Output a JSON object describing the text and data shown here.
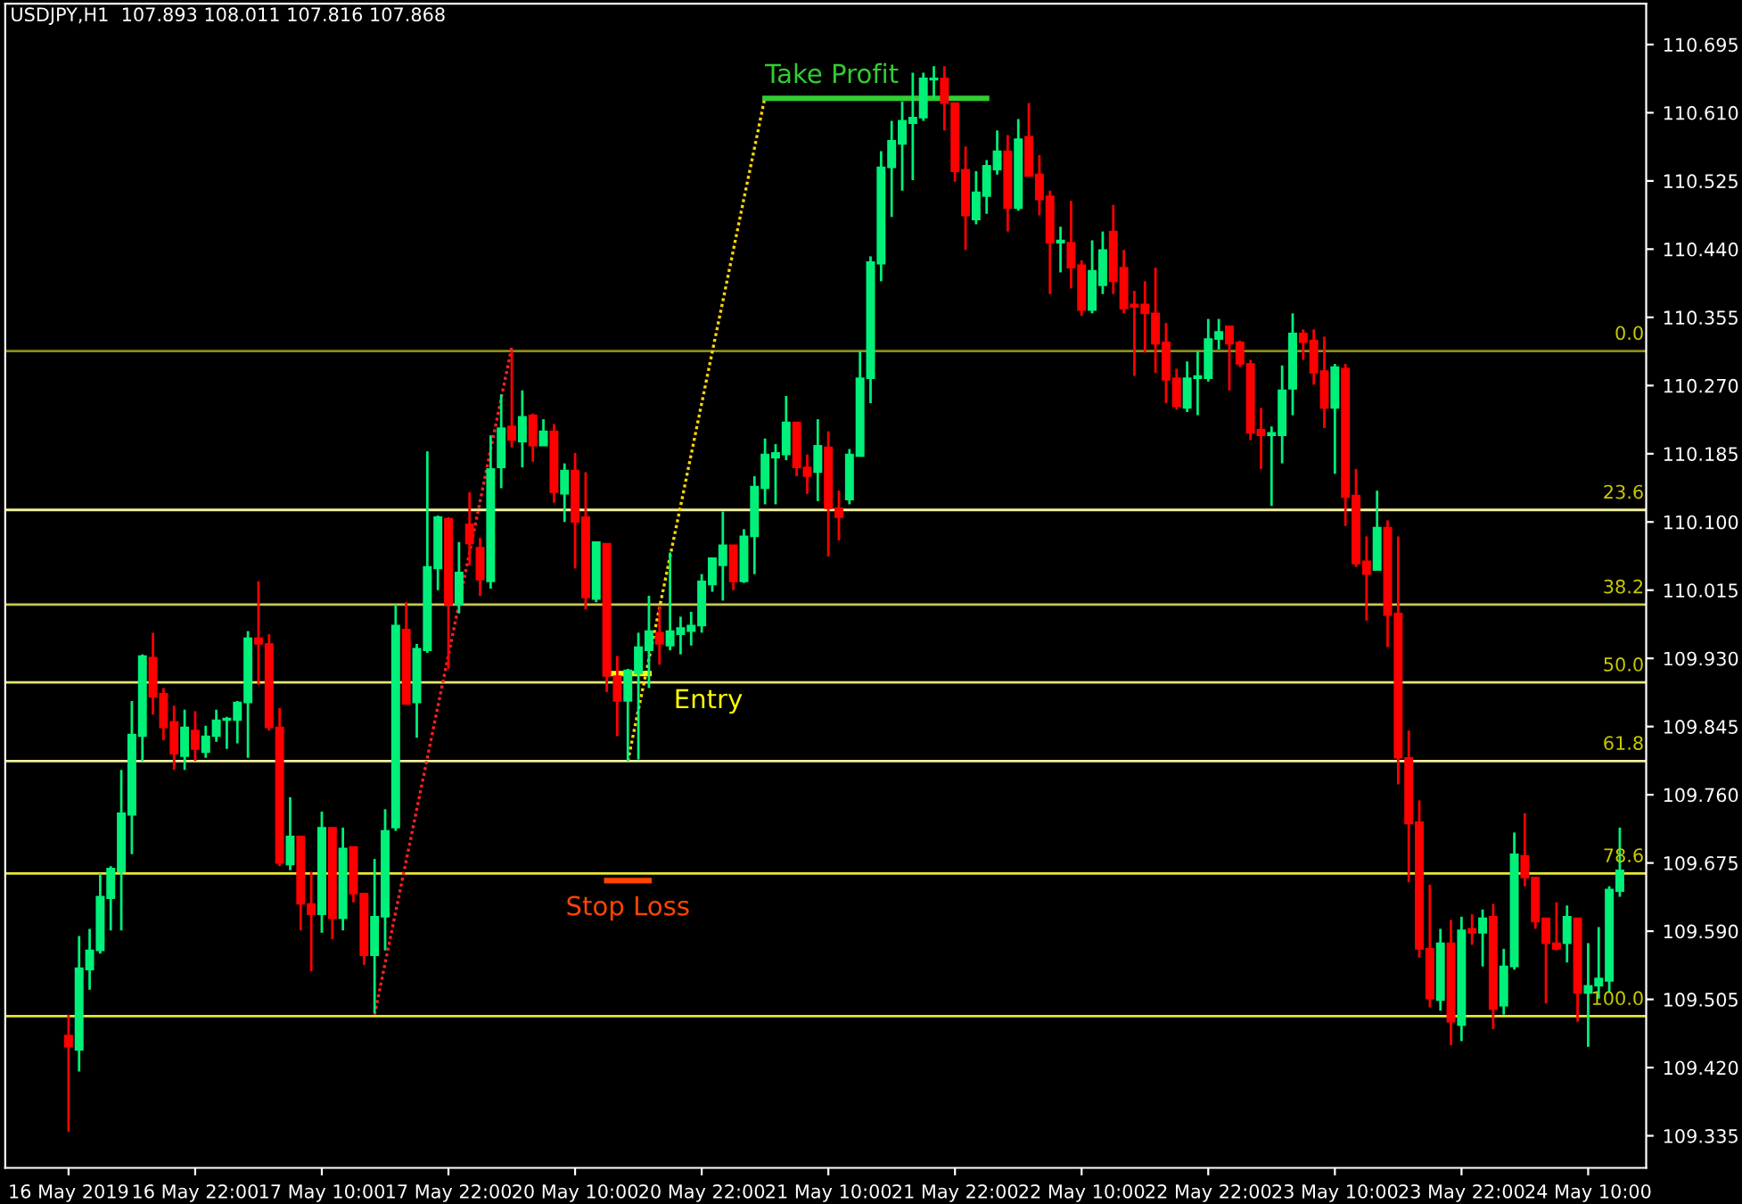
{
  "chart_data": {
    "type": "candlestick",
    "title": "USDJPY,H1  107.893 108.011 107.816 107.868",
    "categories": [
      "16 May 2019",
      null,
      null,
      null,
      null,
      null,
      null,
      null,
      null,
      null,
      null,
      null,
      "16 May 22:00",
      null,
      null,
      null,
      null,
      null,
      null,
      null,
      null,
      null,
      null,
      null,
      "17 May 10:00",
      null,
      null,
      null,
      null,
      null,
      null,
      null,
      null,
      null,
      null,
      null,
      "17 May 22:00",
      null,
      null,
      null,
      null,
      null,
      null,
      null,
      null,
      null,
      null,
      null,
      "20 May 10:00",
      null,
      null,
      null,
      null,
      null,
      null,
      null,
      null,
      null,
      null,
      null,
      "20 May 22:00",
      null,
      null,
      null,
      null,
      null,
      null,
      null,
      null,
      null,
      null,
      null,
      "21 May 10:00",
      null,
      null,
      null,
      null,
      null,
      null,
      null,
      null,
      null,
      null,
      null,
      "21 May 22:00",
      null,
      null,
      null,
      null,
      null,
      null,
      null,
      null,
      null,
      null,
      null,
      "22 May 10:00",
      null,
      null,
      null,
      null,
      null,
      null,
      null,
      null,
      null,
      null,
      null,
      "22 May 22:00",
      null,
      null,
      null,
      null,
      null,
      null,
      null,
      null,
      null,
      null,
      null,
      "23 May 10:00",
      null,
      null,
      null,
      null,
      null,
      null,
      null,
      null,
      null,
      null,
      null,
      "23 May 22:00",
      null,
      null,
      null,
      null,
      null,
      null,
      null,
      null,
      null,
      null,
      null,
      "24 May 10:00",
      null,
      null,
      null
    ],
    "ohlc": [
      [
        109.46,
        109.486,
        109.34,
        109.446
      ],
      [
        109.442,
        109.584,
        109.415,
        109.544
      ],
      [
        109.542,
        109.593,
        109.517,
        109.566
      ],
      [
        109.566,
        109.662,
        109.562,
        109.633
      ],
      [
        109.631,
        109.671,
        109.591,
        109.668
      ],
      [
        109.664,
        109.791,
        109.591,
        109.737
      ],
      [
        109.735,
        109.877,
        109.686,
        109.835
      ],
      [
        109.833,
        109.935,
        109.802,
        109.933
      ],
      [
        109.931,
        109.962,
        109.86,
        109.882
      ],
      [
        109.886,
        109.893,
        109.828,
        109.844
      ],
      [
        109.851,
        109.871,
        109.791,
        109.811
      ],
      [
        109.808,
        109.866,
        109.791,
        109.844
      ],
      [
        109.84,
        109.864,
        109.802,
        109.817
      ],
      [
        109.813,
        109.846,
        109.806,
        109.833
      ],
      [
        109.833,
        109.866,
        109.826,
        109.853
      ],
      [
        109.853,
        109.857,
        109.817,
        109.855
      ],
      [
        109.853,
        109.877,
        109.824,
        109.875
      ],
      [
        109.875,
        109.964,
        109.806,
        109.955
      ],
      [
        109.955,
        110.026,
        109.897,
        109.948
      ],
      [
        109.948,
        109.96,
        109.84,
        109.844
      ],
      [
        109.844,
        109.868,
        109.671,
        109.675
      ],
      [
        109.673,
        109.757,
        109.666,
        109.708
      ],
      [
        109.708,
        109.708,
        109.591,
        109.624
      ],
      [
        109.624,
        109.664,
        109.54,
        109.611
      ],
      [
        109.611,
        109.739,
        109.588,
        109.719
      ],
      [
        109.719,
        109.719,
        109.58,
        109.606
      ],
      [
        109.606,
        109.719,
        109.591,
        109.693
      ],
      [
        109.695,
        109.695,
        109.626,
        109.637
      ],
      [
        109.637,
        109.637,
        109.548,
        109.56
      ],
      [
        109.56,
        109.68,
        109.488,
        109.608
      ],
      [
        109.608,
        109.742,
        109.566,
        109.715
      ],
      [
        109.719,
        109.997,
        109.715,
        109.971
      ],
      [
        109.966,
        110.0,
        109.873,
        109.873
      ],
      [
        109.875,
        109.948,
        109.831,
        109.942
      ],
      [
        109.94,
        110.188,
        109.937,
        110.044
      ],
      [
        110.042,
        110.108,
        110.015,
        110.106
      ],
      [
        110.104,
        110.106,
        109.917,
        109.997
      ],
      [
        109.997,
        110.075,
        109.986,
        110.037
      ],
      [
        110.097,
        110.137,
        110.046,
        110.073
      ],
      [
        110.068,
        110.08,
        110.008,
        110.028
      ],
      [
        110.026,
        110.208,
        110.017,
        110.166
      ],
      [
        110.168,
        110.259,
        110.142,
        110.217
      ],
      [
        110.219,
        110.313,
        110.193,
        110.202
      ],
      [
        110.2,
        110.264,
        110.168,
        110.231
      ],
      [
        110.233,
        110.235,
        110.175,
        110.195
      ],
      [
        110.195,
        110.228,
        110.195,
        110.213
      ],
      [
        110.213,
        110.222,
        110.124,
        110.137
      ],
      [
        110.135,
        110.173,
        110.1,
        110.164
      ],
      [
        110.164,
        110.186,
        110.042,
        110.1
      ],
      [
        110.106,
        110.162,
        109.991,
        110.006
      ],
      [
        110.004,
        110.075,
        110.0,
        110.075
      ],
      [
        110.073,
        110.073,
        109.888,
        109.908
      ],
      [
        109.908,
        109.933,
        109.833,
        109.877
      ],
      [
        109.877,
        109.917,
        109.802,
        109.915
      ],
      [
        109.911,
        109.962,
        109.804,
        109.944
      ],
      [
        109.94,
        110.008,
        109.893,
        109.964
      ],
      [
        109.962,
        109.995,
        109.922,
        109.948
      ],
      [
        109.946,
        110.062,
        109.94,
        109.964
      ],
      [
        109.96,
        109.982,
        109.935,
        109.968
      ],
      [
        109.964,
        109.988,
        109.946,
        109.971
      ],
      [
        109.971,
        110.035,
        109.962,
        110.026
      ],
      [
        110.022,
        110.055,
        110.013,
        110.055
      ],
      [
        110.046,
        110.113,
        110.002,
        110.071
      ],
      [
        110.071,
        110.071,
        110.015,
        110.026
      ],
      [
        110.026,
        110.091,
        110.024,
        110.082
      ],
      [
        110.082,
        110.157,
        110.035,
        110.144
      ],
      [
        110.142,
        110.204,
        110.122,
        110.184
      ],
      [
        110.18,
        110.197,
        110.122,
        110.186
      ],
      [
        110.184,
        110.257,
        110.177,
        110.224
      ],
      [
        110.224,
        110.224,
        110.157,
        110.168
      ],
      [
        110.168,
        110.184,
        110.135,
        110.157
      ],
      [
        110.162,
        110.228,
        110.126,
        110.195
      ],
      [
        110.193,
        110.213,
        110.057,
        110.117
      ],
      [
        110.117,
        110.139,
        110.077,
        110.106
      ],
      [
        110.128,
        110.191,
        110.122,
        110.184
      ],
      [
        110.182,
        110.313,
        110.182,
        110.279
      ],
      [
        110.279,
        110.431,
        110.248,
        110.424
      ],
      [
        110.422,
        110.562,
        110.4,
        110.542
      ],
      [
        110.542,
        110.6,
        110.48,
        110.575
      ],
      [
        110.571,
        110.624,
        110.513,
        110.6
      ],
      [
        110.597,
        110.66,
        110.526,
        110.604
      ],
      [
        110.604,
        110.66,
        110.6,
        110.653
      ],
      [
        110.651,
        110.668,
        110.628,
        110.653
      ],
      [
        110.653,
        110.668,
        110.588,
        110.622
      ],
      [
        110.622,
        110.622,
        110.524,
        110.537
      ],
      [
        110.539,
        110.568,
        110.439,
        110.482
      ],
      [
        110.477,
        110.537,
        110.471,
        110.511
      ],
      [
        110.506,
        110.551,
        110.484,
        110.544
      ],
      [
        110.539,
        110.588,
        110.533,
        110.562
      ],
      [
        110.562,
        110.582,
        110.462,
        110.491
      ],
      [
        110.491,
        110.602,
        110.488,
        110.577
      ],
      [
        110.58,
        110.622,
        110.531,
        110.531
      ],
      [
        110.533,
        110.557,
        110.482,
        110.502
      ],
      [
        110.506,
        110.513,
        110.384,
        110.448
      ],
      [
        110.448,
        110.468,
        110.411,
        110.451
      ],
      [
        110.448,
        110.5,
        110.391,
        110.417
      ],
      [
        110.42,
        110.426,
        110.357,
        110.364
      ],
      [
        110.364,
        110.451,
        110.36,
        110.413
      ],
      [
        110.395,
        110.462,
        110.384,
        110.439
      ],
      [
        110.462,
        110.495,
        110.384,
        110.4
      ],
      [
        110.417,
        110.439,
        110.36,
        110.366
      ],
      [
        110.371,
        110.388,
        110.282,
        110.368
      ],
      [
        110.371,
        110.4,
        110.311,
        110.36
      ],
      [
        110.36,
        110.417,
        110.286,
        110.322
      ],
      [
        110.324,
        110.348,
        110.248,
        110.277
      ],
      [
        110.279,
        110.291,
        110.24,
        110.244
      ],
      [
        110.242,
        110.3,
        110.237,
        110.279
      ],
      [
        110.279,
        110.313,
        110.233,
        110.282
      ],
      [
        110.279,
        110.353,
        110.275,
        110.328
      ],
      [
        110.328,
        110.353,
        110.315,
        110.337
      ],
      [
        110.344,
        110.344,
        110.264,
        110.322
      ],
      [
        110.324,
        110.326,
        110.293,
        110.297
      ],
      [
        110.297,
        110.302,
        110.202,
        110.211
      ],
      [
        110.215,
        110.242,
        110.166,
        110.208
      ],
      [
        110.208,
        110.219,
        110.12,
        110.211
      ],
      [
        110.208,
        110.295,
        110.173,
        110.264
      ],
      [
        110.266,
        110.36,
        110.233,
        110.335
      ],
      [
        110.335,
        110.34,
        110.302,
        110.324
      ],
      [
        110.326,
        110.34,
        110.271,
        110.286
      ],
      [
        110.288,
        110.331,
        110.217,
        110.242
      ],
      [
        110.242,
        110.297,
        110.16,
        110.293
      ],
      [
        110.291,
        110.297,
        110.095,
        110.131
      ],
      [
        110.133,
        110.166,
        110.044,
        110.048
      ],
      [
        110.051,
        110.082,
        109.977,
        110.035
      ],
      [
        110.04,
        110.139,
        110.04,
        110.093
      ],
      [
        110.093,
        110.102,
        109.944,
        109.984
      ],
      [
        109.986,
        110.082,
        109.773,
        109.806
      ],
      [
        109.806,
        109.84,
        109.651,
        109.724
      ],
      [
        109.726,
        109.753,
        109.557,
        109.568
      ],
      [
        109.568,
        109.648,
        109.495,
        109.506
      ],
      [
        109.504,
        109.593,
        109.491,
        109.575
      ],
      [
        109.575,
        109.604,
        109.448,
        109.477
      ],
      [
        109.473,
        109.608,
        109.453,
        109.591
      ],
      [
        109.593,
        109.611,
        109.573,
        109.588
      ],
      [
        109.588,
        109.617,
        109.546,
        109.606
      ],
      [
        109.608,
        109.624,
        109.468,
        109.493
      ],
      [
        109.497,
        109.568,
        109.486,
        109.546
      ],
      [
        109.546,
        109.713,
        109.542,
        109.686
      ],
      [
        109.684,
        109.737,
        109.646,
        109.657
      ],
      [
        109.657,
        109.657,
        109.593,
        109.602
      ],
      [
        109.606,
        109.606,
        109.5,
        109.575
      ],
      [
        109.575,
        109.626,
        109.566,
        109.568
      ],
      [
        109.575,
        109.622,
        109.551,
        109.608
      ],
      [
        109.606,
        109.606,
        109.477,
        109.513
      ],
      [
        109.513,
        109.575,
        109.446,
        109.522
      ],
      [
        109.522,
        109.595,
        109.506,
        109.531
      ],
      [
        109.528,
        109.646,
        109.513,
        109.642
      ],
      [
        109.64,
        109.719,
        109.633,
        109.666
      ]
    ],
    "ylim": [
      109.295,
      110.746
    ],
    "yticks": [
      {
        "value": 109.335,
        "label": "109.335"
      },
      {
        "value": 109.42,
        "label": "109.420"
      },
      {
        "value": 109.505,
        "label": "109.505"
      },
      {
        "value": 109.59,
        "label": "109.590"
      },
      {
        "value": 109.675,
        "label": "109.675"
      },
      {
        "value": 109.76,
        "label": "109.760"
      },
      {
        "value": 109.845,
        "label": "109.845"
      },
      {
        "value": 109.93,
        "label": "109.930"
      },
      {
        "value": 110.015,
        "label": "110.015"
      },
      {
        "value": 110.1,
        "label": "110.100"
      },
      {
        "value": 110.185,
        "label": "110.185"
      },
      {
        "value": 110.27,
        "label": "110.270"
      },
      {
        "value": 110.355,
        "label": "110.355"
      },
      {
        "value": 110.44,
        "label": "110.440"
      },
      {
        "value": 110.525,
        "label": "110.525"
      },
      {
        "value": 110.61,
        "label": "110.610"
      },
      {
        "value": 110.695,
        "label": "110.695"
      }
    ],
    "colors": [
      "#ff0000",
      "#00f07a",
      "#00f07a",
      "#00f07a",
      "#00f07a",
      "#00f07a",
      "#00f07a",
      "#00f07a",
      "#ff0000",
      "#ff0000",
      "#ff0000",
      "#00f07a",
      "#ff0000",
      "#00f07a",
      "#00f07a",
      "#00f07a",
      "#00f07a",
      "#00f07a",
      "#ff0000",
      "#ff0000",
      "#ff0000",
      "#00f07a",
      "#ff0000",
      "#ff0000",
      "#00f07a",
      "#ff0000",
      "#00f07a",
      "#ff0000",
      "#ff0000",
      "#00f07a",
      "#00f07a",
      "#00f07a",
      "#ff0000",
      "#00f07a",
      "#00f07a",
      "#00f07a",
      "#ff0000",
      "#00f07a",
      "#ff0000",
      "#ff0000",
      "#00f07a",
      "#00f07a",
      "#ff0000",
      "#00f07a",
      "#ff0000",
      "#00f07a",
      "#ff0000",
      "#00f07a",
      "#ff0000",
      "#ff0000",
      "#00f07a",
      "#ff0000",
      "#ff0000",
      "#00f07a",
      "#00f07a",
      "#00f07a",
      "#ff0000",
      "#00f07a",
      "#00f07a",
      "#00f07a",
      "#00f07a",
      "#00f07a",
      "#00f07a",
      "#ff0000",
      "#00f07a",
      "#00f07a",
      "#00f07a",
      "#00f07a",
      "#00f07a",
      "#ff0000",
      "#ff0000",
      "#00f07a",
      "#ff0000",
      "#ff0000",
      "#00f07a",
      "#00f07a",
      "#00f07a",
      "#00f07a",
      "#00f07a",
      "#00f07a",
      "#00f07a",
      "#00f07a",
      "#00f07a",
      "#ff0000",
      "#ff0000",
      "#ff0000",
      "#00f07a",
      "#00f07a",
      "#00f07a",
      "#ff0000",
      "#00f07a",
      "#ff0000",
      "#ff0000",
      "#ff0000",
      "#00f07a",
      "#ff0000",
      "#ff0000",
      "#00f07a",
      "#00f07a",
      "#ff0000",
      "#ff0000",
      "#ff0000",
      "#ff0000",
      "#ff0000",
      "#ff0000",
      "#ff0000",
      "#00f07a",
      "#00f07a",
      "#00f07a",
      "#00f07a",
      "#ff0000",
      "#ff0000",
      "#ff0000",
      "#ff0000",
      "#00f07a",
      "#00f07a",
      "#00f07a",
      "#ff0000",
      "#ff0000",
      "#ff0000",
      "#00f07a",
      "#ff0000",
      "#ff0000",
      "#ff0000",
      "#00f07a",
      "#ff0000",
      "#ff0000",
      "#ff0000",
      "#ff0000",
      "#ff0000",
      "#00f07a",
      "#ff0000",
      "#00f07a",
      "#ff0000",
      "#00f07a",
      "#ff0000",
      "#00f07a",
      "#00f07a",
      "#ff0000",
      "#ff0000",
      "#ff0000",
      "#ff0000",
      "#00f07a",
      "#ff0000",
      "#00f07a",
      "#00f07a",
      "#00f07a",
      "#00f07a"
    ],
    "ref_lines": [
      {
        "axis": "y",
        "value": 110.313,
        "color": "#8c8c1e"
      },
      {
        "axis": "y",
        "value": 110.115,
        "color": "#f0f0a0"
      },
      {
        "axis": "y",
        "value": 109.997,
        "color": "#c8c850"
      },
      {
        "axis": "y",
        "value": 109.9,
        "color": "#e6e66e"
      },
      {
        "axis": "y",
        "value": 109.802,
        "color": "#f0f0a0"
      },
      {
        "axis": "y",
        "value": 109.662,
        "color": "#e6e632"
      },
      {
        "axis": "y",
        "value": 109.484,
        "color": "#e6e632"
      }
    ],
    "annotations": [
      {
        "text": "0.0",
        "y": 110.313
      },
      {
        "text": "23.6",
        "y": 110.115
      },
      {
        "text": "38.2",
        "y": 109.997
      },
      {
        "text": "50.0",
        "y": 109.9
      },
      {
        "text": "61.8",
        "y": 109.802
      },
      {
        "text": "78.6",
        "y": 109.662
      },
      {
        "text": "100.0",
        "y": 109.484
      }
    ],
    "series": [
      {
        "type": "line",
        "color": "#ff2020",
        "line_style": "dotted",
        "values": [
          null,
          null,
          null,
          null,
          null,
          null,
          null,
          null,
          null,
          null,
          null,
          null,
          null,
          null,
          null,
          null,
          null,
          null,
          null,
          null,
          null,
          null,
          null,
          null,
          null,
          null,
          null,
          null,
          null,
          109.486,
          109.55,
          109.614,
          109.678,
          109.742,
          109.806,
          109.87,
          109.934,
          109.998,
          110.062,
          110.126,
          110.19,
          110.254,
          110.318,
          null,
          null,
          null,
          null,
          null,
          null,
          null,
          null,
          null,
          null,
          null,
          null,
          null,
          null,
          null,
          null,
          null,
          null,
          null,
          null,
          null,
          null,
          null,
          null,
          null,
          null,
          null,
          null,
          null,
          null,
          null,
          null,
          null,
          null,
          null,
          null,
          null,
          null,
          null,
          null,
          null,
          null,
          null,
          null,
          null,
          null,
          null,
          null,
          null,
          null,
          null,
          null,
          null,
          null,
          null,
          null,
          null,
          null,
          null,
          null,
          null,
          null,
          null,
          null,
          null,
          null,
          null,
          null,
          null,
          null,
          null,
          null,
          null,
          null,
          null,
          null,
          null,
          null,
          null,
          null,
          null,
          null,
          null,
          null,
          null,
          null,
          null,
          null,
          null,
          null,
          null,
          null,
          null,
          null,
          null,
          null,
          null,
          null,
          null,
          null,
          null,
          null,
          null,
          null,
          null
        ]
      },
      {
        "type": "line",
        "color": "#ffd700",
        "line_style": "dotted",
        "values": [
          null,
          null,
          null,
          null,
          null,
          null,
          null,
          null,
          null,
          null,
          null,
          null,
          null,
          null,
          null,
          null,
          null,
          null,
          null,
          null,
          null,
          null,
          null,
          null,
          null,
          null,
          null,
          null,
          null,
          null,
          null,
          null,
          null,
          null,
          null,
          null,
          null,
          null,
          null,
          null,
          null,
          null,
          null,
          null,
          null,
          null,
          null,
          null,
          null,
          null,
          null,
          null,
          null,
          109.802,
          109.866,
          109.929,
          109.993,
          110.057,
          110.12,
          110.184,
          110.248,
          110.312,
          110.375,
          110.439,
          110.503,
          110.566,
          110.63,
          null,
          null,
          null,
          null,
          null,
          null,
          null,
          null,
          null,
          null,
          null,
          null,
          null,
          null,
          null,
          null,
          null,
          null,
          null,
          null,
          null,
          null,
          null,
          null,
          null,
          null,
          null,
          null,
          null,
          null,
          null,
          null,
          null,
          null,
          null,
          null,
          null,
          null,
          null,
          null,
          null,
          null,
          null,
          null,
          null,
          null,
          null,
          null,
          null,
          null,
          null,
          null,
          null,
          null,
          null,
          null,
          null,
          null,
          null,
          null,
          null,
          null,
          null,
          null,
          null,
          null,
          null,
          null,
          null,
          null,
          null,
          null,
          null,
          null,
          null,
          null,
          null,
          null,
          null,
          null,
          null
        ]
      },
      {
        "type": "line",
        "name": "Take Profit",
        "color": "#32cd32",
        "line_style": "solid",
        "values": [
          null,
          null,
          null,
          null,
          null,
          null,
          null,
          null,
          null,
          null,
          null,
          null,
          null,
          null,
          null,
          null,
          null,
          null,
          null,
          null,
          null,
          null,
          null,
          null,
          null,
          null,
          null,
          null,
          null,
          null,
          null,
          null,
          null,
          null,
          null,
          null,
          null,
          null,
          null,
          null,
          null,
          null,
          null,
          null,
          null,
          null,
          null,
          null,
          null,
          null,
          null,
          null,
          null,
          null,
          null,
          null,
          null,
          null,
          null,
          null,
          null,
          null,
          null,
          null,
          null,
          null,
          110.628,
          110.628,
          110.628,
          110.628,
          110.628,
          110.628,
          110.628,
          110.628,
          110.628,
          110.628,
          110.628,
          110.628,
          110.628,
          110.628,
          110.628,
          110.628,
          110.628,
          110.628,
          110.628,
          110.628,
          110.628,
          110.628,
          null,
          null,
          null,
          null,
          null,
          null,
          null,
          null,
          null,
          null,
          null,
          null,
          null,
          null,
          null,
          null,
          null,
          null,
          null,
          null,
          null,
          null,
          null,
          null,
          null,
          null,
          null,
          null,
          null,
          null,
          null,
          null,
          null,
          null,
          null,
          null,
          null,
          null,
          null,
          null,
          null,
          null,
          null,
          null,
          null,
          null,
          null,
          null,
          null,
          null,
          null,
          null,
          null,
          null,
          null,
          null,
          null,
          null,
          null,
          null
        ]
      },
      {
        "type": "line",
        "name": "Entry",
        "color": "#ffff00",
        "line_style": "solid",
        "values": [
          null,
          null,
          null,
          null,
          null,
          null,
          null,
          null,
          null,
          null,
          null,
          null,
          null,
          null,
          null,
          null,
          null,
          null,
          null,
          null,
          null,
          null,
          null,
          null,
          null,
          null,
          null,
          null,
          null,
          null,
          null,
          null,
          null,
          null,
          null,
          null,
          null,
          null,
          null,
          null,
          null,
          null,
          null,
          null,
          null,
          null,
          null,
          null,
          null,
          null,
          null,
          109.911,
          109.911,
          109.911,
          109.911,
          109.911,
          null,
          null,
          null,
          null,
          null,
          null,
          null,
          null,
          null,
          null,
          null,
          null,
          null,
          null,
          null,
          null,
          null,
          null,
          null,
          null,
          null,
          null,
          null,
          null,
          null,
          null,
          null,
          null,
          null,
          null,
          null,
          null,
          null,
          null,
          null,
          null,
          null,
          null,
          null,
          null,
          null,
          null,
          null,
          null,
          null,
          null,
          null,
          null,
          null,
          null,
          null,
          null,
          null,
          null,
          null,
          null,
          null,
          null,
          null,
          null,
          null,
          null,
          null,
          null,
          null,
          null,
          null,
          null,
          null,
          null,
          null,
          null,
          null,
          null,
          null,
          null,
          null,
          null,
          null,
          null,
          null,
          null,
          null,
          null,
          null,
          null,
          null,
          null,
          null,
          null,
          null,
          null
        ]
      },
      {
        "type": "line",
        "name": "Stop Loss",
        "color": "#ff4500",
        "line_style": "solid",
        "values": [
          null,
          null,
          null,
          null,
          null,
          null,
          null,
          null,
          null,
          null,
          null,
          null,
          null,
          null,
          null,
          null,
          null,
          null,
          null,
          null,
          null,
          null,
          null,
          null,
          null,
          null,
          null,
          null,
          null,
          null,
          null,
          null,
          null,
          null,
          null,
          null,
          null,
          null,
          null,
          null,
          null,
          null,
          null,
          null,
          null,
          null,
          null,
          null,
          null,
          null,
          null,
          109.653,
          109.653,
          109.653,
          109.653,
          109.653,
          null,
          null,
          null,
          null,
          null,
          null,
          null,
          null,
          null,
          null,
          null,
          null,
          null,
          null,
          null,
          null,
          null,
          null,
          null,
          null,
          null,
          null,
          null,
          null,
          null,
          null,
          null,
          null,
          null,
          null,
          null,
          null,
          null,
          null,
          null,
          null,
          null,
          null,
          null,
          null,
          null,
          null,
          null,
          null,
          null,
          null,
          null,
          null,
          null,
          null,
          null,
          null,
          null,
          null,
          null,
          null,
          null,
          null,
          null,
          null,
          null,
          null,
          null,
          null,
          null,
          null,
          null,
          null,
          null,
          null,
          null,
          null,
          null,
          null,
          null,
          null,
          null,
          null,
          null,
          null,
          null,
          null,
          null,
          null,
          null,
          null,
          null,
          null,
          null,
          null,
          null,
          null
        ]
      }
    ]
  }
}
